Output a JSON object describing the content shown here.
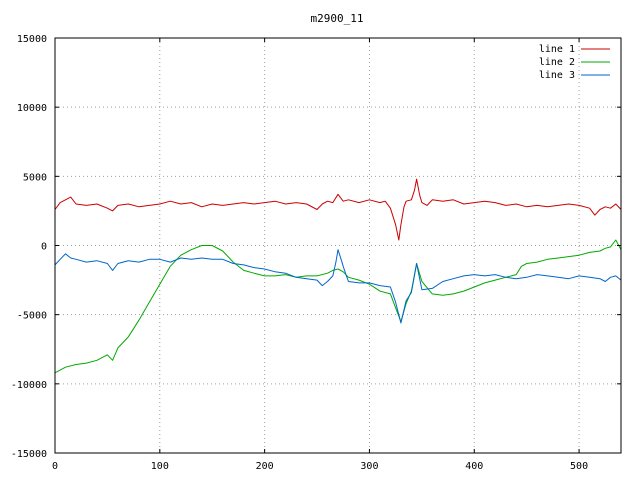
{
  "chart_data": {
    "type": "line",
    "title": "m2900_11",
    "xlabel": "",
    "ylabel": "",
    "xlim": [
      0,
      540
    ],
    "ylim": [
      -15000,
      15000
    ],
    "xticks": [
      0,
      100,
      200,
      300,
      400,
      500
    ],
    "yticks": [
      -15000,
      -10000,
      -5000,
      0,
      5000,
      10000,
      15000
    ],
    "grid": true,
    "legend_position": "top-right",
    "series": [
      {
        "name": "line 1",
        "color": "#cc0000",
        "x": [
          0,
          5,
          10,
          15,
          20,
          30,
          40,
          50,
          55,
          60,
          70,
          80,
          90,
          100,
          110,
          120,
          130,
          140,
          150,
          160,
          170,
          180,
          190,
          200,
          210,
          220,
          230,
          240,
          250,
          255,
          260,
          265,
          270,
          275,
          280,
          290,
          300,
          310,
          315,
          320,
          325,
          328,
          330,
          333,
          335,
          340,
          343,
          345,
          348,
          350,
          355,
          360,
          370,
          380,
          390,
          400,
          410,
          420,
          430,
          440,
          450,
          460,
          470,
          480,
          490,
          500,
          510,
          515,
          520,
          525,
          530,
          535,
          540
        ],
        "y": [
          2600,
          3100,
          3300,
          3500,
          3000,
          2900,
          3000,
          2700,
          2500,
          2900,
          3000,
          2800,
          2900,
          3000,
          3200,
          3000,
          3100,
          2800,
          3000,
          2900,
          3000,
          3100,
          3000,
          3100,
          3200,
          3000,
          3100,
          3000,
          2600,
          3000,
          3200,
          3100,
          3700,
          3200,
          3300,
          3100,
          3300,
          3100,
          3200,
          2700,
          1500,
          400,
          1500,
          2800,
          3200,
          3300,
          4000,
          4800,
          3600,
          3100,
          2900,
          3300,
          3200,
          3300,
          3000,
          3100,
          3200,
          3100,
          2900,
          3000,
          2800,
          2900,
          2800,
          2900,
          3000,
          2900,
          2700,
          2200,
          2600,
          2800,
          2700,
          3000,
          2600
        ]
      },
      {
        "name": "line 2",
        "color": "#00aa00",
        "x": [
          0,
          10,
          20,
          30,
          40,
          50,
          55,
          60,
          70,
          80,
          90,
          100,
          110,
          120,
          130,
          140,
          150,
          160,
          170,
          180,
          190,
          200,
          210,
          220,
          230,
          240,
          250,
          260,
          265,
          270,
          275,
          280,
          290,
          300,
          310,
          320,
          325,
          330,
          335,
          340,
          345,
          350,
          360,
          370,
          380,
          390,
          400,
          410,
          420,
          430,
          440,
          445,
          450,
          460,
          470,
          480,
          490,
          500,
          510,
          520,
          525,
          530,
          535,
          540
        ],
        "y": [
          -9200,
          -8800,
          -8600,
          -8500,
          -8300,
          -7900,
          -8300,
          -7400,
          -6600,
          -5400,
          -4100,
          -2800,
          -1500,
          -700,
          -300,
          0,
          0,
          -400,
          -1200,
          -1800,
          -2000,
          -2200,
          -2200,
          -2100,
          -2300,
          -2200,
          -2200,
          -2000,
          -1800,
          -1700,
          -1900,
          -2300,
          -2500,
          -2800,
          -3300,
          -3500,
          -4500,
          -5500,
          -4200,
          -3300,
          -1300,
          -2600,
          -3500,
          -3600,
          -3500,
          -3300,
          -3000,
          -2700,
          -2500,
          -2300,
          -2100,
          -1500,
          -1300,
          -1200,
          -1000,
          -900,
          -800,
          -700,
          -500,
          -400,
          -200,
          -100,
          400,
          -300
        ]
      },
      {
        "name": "line 3",
        "color": "#0066cc",
        "x": [
          0,
          5,
          10,
          15,
          20,
          30,
          40,
          50,
          55,
          60,
          70,
          80,
          90,
          100,
          110,
          120,
          130,
          140,
          150,
          160,
          170,
          180,
          190,
          200,
          210,
          220,
          230,
          240,
          250,
          255,
          260,
          265,
          268,
          270,
          273,
          275,
          278,
          280,
          290,
          300,
          310,
          320,
          325,
          330,
          335,
          340,
          345,
          350,
          360,
          370,
          380,
          390,
          400,
          410,
          420,
          430,
          440,
          450,
          460,
          470,
          480,
          490,
          500,
          510,
          520,
          525,
          530,
          535,
          540
        ],
        "y": [
          -1400,
          -1000,
          -600,
          -900,
          -1000,
          -1200,
          -1100,
          -1300,
          -1800,
          -1300,
          -1100,
          -1200,
          -1000,
          -1000,
          -1200,
          -900,
          -1000,
          -900,
          -1000,
          -1000,
          -1300,
          -1400,
          -1600,
          -1700,
          -1900,
          -2000,
          -2300,
          -2400,
          -2500,
          -2900,
          -2600,
          -2200,
          -1200,
          -300,
          -1000,
          -1500,
          -2200,
          -2600,
          -2700,
          -2700,
          -2900,
          -3000,
          -4100,
          -5600,
          -4000,
          -3400,
          -1300,
          -3200,
          -3100,
          -2600,
          -2400,
          -2200,
          -2100,
          -2200,
          -2100,
          -2300,
          -2400,
          -2300,
          -2100,
          -2200,
          -2300,
          -2400,
          -2200,
          -2300,
          -2400,
          -2600,
          -2300,
          -2200,
          -2500
        ]
      }
    ]
  }
}
